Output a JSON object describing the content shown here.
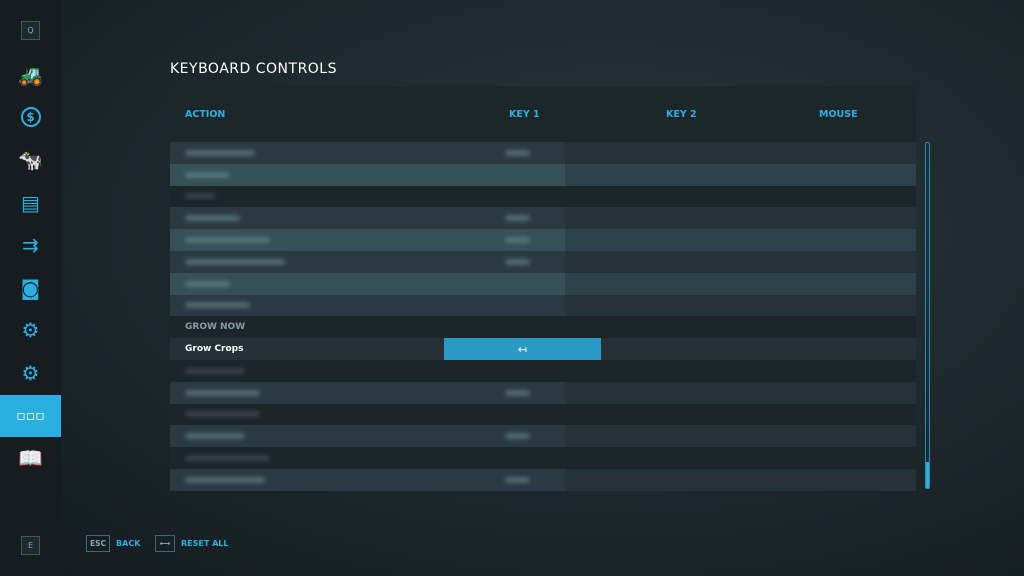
{
  "sidebar": {
    "top_key": "Q",
    "bottom_key": "E",
    "items": [
      {
        "icon": "tractor-icon"
      },
      {
        "icon": "dollar-icon"
      },
      {
        "icon": "cow-icon"
      },
      {
        "icon": "contracts-icon"
      },
      {
        "icon": "production-icon"
      },
      {
        "icon": "statistics-icon"
      },
      {
        "icon": "garage-icon"
      },
      {
        "icon": "settings-icon"
      },
      {
        "icon": "controls-icon",
        "active": true
      },
      {
        "icon": "help-icon"
      }
    ]
  },
  "title": "KEYBOARD CONTROLS",
  "columns": {
    "action": "ACTION",
    "key1": "KEY 1",
    "key2": "KEY 2",
    "mouse": "MOUSE"
  },
  "section": "GROW NOW",
  "selected_row": {
    "label": "Grow Crops",
    "key1": "↤"
  },
  "footer": {
    "back_key": "ESC",
    "back": "BACK",
    "reset_key": "⟷",
    "reset": "RESET ALL"
  },
  "accent": "#2ab0e0"
}
